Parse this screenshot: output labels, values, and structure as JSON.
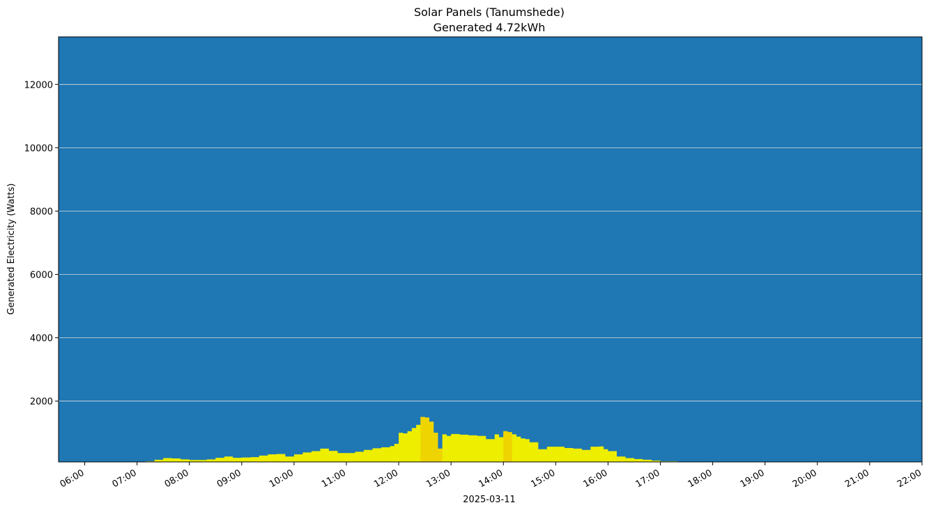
{
  "chart_data": {
    "type": "area",
    "title": "Solar Panels (Tanumshede)",
    "subtitle": "Generated 4.72kWh",
    "xlabel": "2025-03-11",
    "ylabel": "Generated Electricity (Watts)",
    "date": "2025-03-11",
    "xlim": [
      "05:30",
      "22:00"
    ],
    "ylim": [
      80,
      13500
    ],
    "x_tick_labels": [
      "06:00",
      "07:00",
      "08:00",
      "09:00",
      "10:00",
      "11:00",
      "12:00",
      "13:00",
      "14:00",
      "15:00",
      "16:00",
      "17:00",
      "18:00",
      "19:00",
      "20:00",
      "21:00",
      "22:00"
    ],
    "y_tick_labels": [
      "2000",
      "4000",
      "6000",
      "8000",
      "10000",
      "12000"
    ],
    "grid": "horizontal",
    "colors": {
      "background": "#1f77b4",
      "generation": "#eeee00",
      "peak_generation": "#eed400",
      "grid": "#dddddd"
    },
    "series": [
      {
        "x": [
          "07:00",
          "07:10",
          "07:20",
          "07:30",
          "07:40",
          "07:50",
          "08:00",
          "08:10",
          "08:20",
          "08:30",
          "08:40",
          "08:50",
          "09:00",
          "09:10",
          "09:20",
          "09:30",
          "09:40",
          "09:50",
          "10:00",
          "10:10",
          "10:20",
          "10:30",
          "10:40",
          "10:50",
          "11:00",
          "11:10",
          "11:20",
          "11:30",
          "11:40",
          "11:50",
          "11:55",
          "12:00",
          "12:05",
          "12:10",
          "12:15",
          "12:20",
          "12:25",
          "12:30",
          "12:35",
          "12:40",
          "12:45",
          "12:50",
          "12:55",
          "13:00",
          "13:10",
          "13:20",
          "13:30",
          "13:40",
          "13:50",
          "13:55",
          "14:00",
          "14:05",
          "14:10",
          "14:15",
          "14:20",
          "14:25",
          "14:30",
          "14:40",
          "14:50",
          "15:00",
          "15:10",
          "15:20",
          "15:30",
          "15:40",
          "15:50",
          "15:55",
          "16:00",
          "16:10",
          "16:20",
          "16:30",
          "16:40",
          "16:50",
          "17:00",
          "17:20",
          "17:40",
          "18:00",
          "18:20",
          "18:30",
          "18:40"
        ],
        "y": [
          60,
          100,
          150,
          200,
          190,
          160,
          140,
          140,
          160,
          210,
          250,
          210,
          220,
          230,
          280,
          320,
          330,
          250,
          320,
          380,
          420,
          500,
          430,
          360,
          360,
          400,
          460,
          510,
          540,
          580,
          650,
          1000,
          980,
          1050,
          1150,
          1250,
          1500,
          1480,
          1350,
          1000,
          500,
          950,
          900,
          960,
          940,
          920,
          900,
          800,
          950,
          860,
          1050,
          1020,
          950,
          880,
          820,
          800,
          700,
          480,
          560,
          560,
          520,
          500,
          460,
          560,
          570,
          480,
          420,
          250,
          200,
          170,
          150,
          120,
          100,
          80,
          70,
          60,
          50,
          40,
          0
        ],
        "peak_spans": [
          [
            "12:25",
            "12:50"
          ],
          [
            "14:00",
            "14:10"
          ]
        ]
      }
    ]
  }
}
